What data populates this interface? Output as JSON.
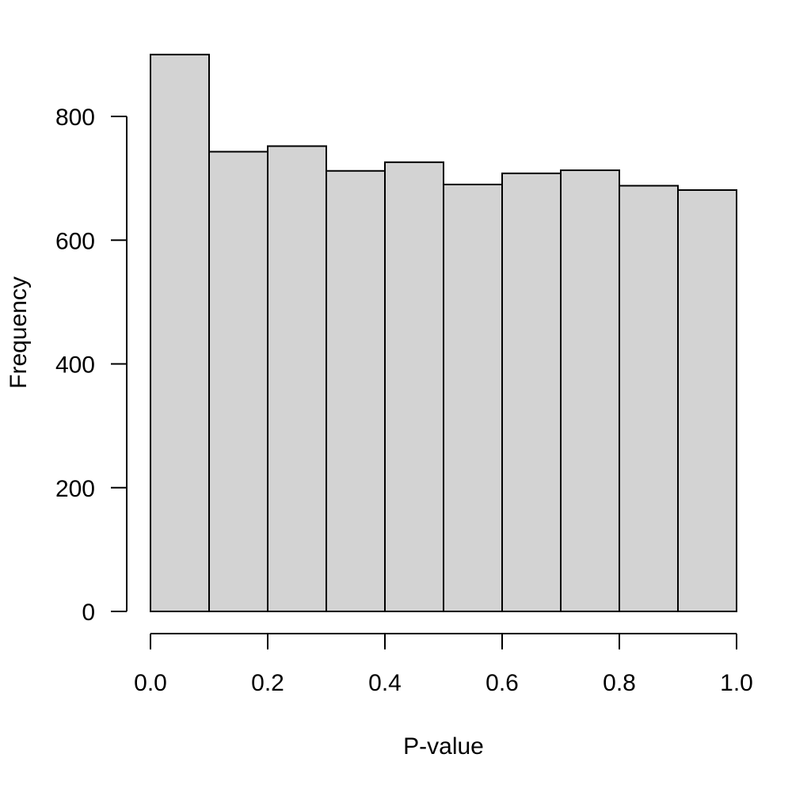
{
  "chart_data": {
    "type": "bar",
    "subtype": "histogram",
    "title": "",
    "xlabel": "P-value",
    "ylabel": "Frequency",
    "bins": [
      {
        "start": 0.0,
        "end": 0.1,
        "value": 900
      },
      {
        "start": 0.1,
        "end": 0.2,
        "value": 743
      },
      {
        "start": 0.2,
        "end": 0.3,
        "value": 752
      },
      {
        "start": 0.3,
        "end": 0.4,
        "value": 712
      },
      {
        "start": 0.4,
        "end": 0.5,
        "value": 726
      },
      {
        "start": 0.5,
        "end": 0.6,
        "value": 690
      },
      {
        "start": 0.6,
        "end": 0.7,
        "value": 708
      },
      {
        "start": 0.7,
        "end": 0.8,
        "value": 713
      },
      {
        "start": 0.8,
        "end": 0.9,
        "value": 688
      },
      {
        "start": 0.9,
        "end": 1.0,
        "value": 681
      }
    ],
    "xlim": [
      0.0,
      1.0
    ],
    "ylim": [
      0,
      900
    ],
    "x_ticks": [
      "0.0",
      "0.2",
      "0.4",
      "0.6",
      "0.8",
      "1.0"
    ],
    "y_ticks": [
      "0",
      "200",
      "400",
      "600",
      "800"
    ],
    "grid": false,
    "bar_color": "#d3d3d3",
    "edge_color": "#000000"
  }
}
